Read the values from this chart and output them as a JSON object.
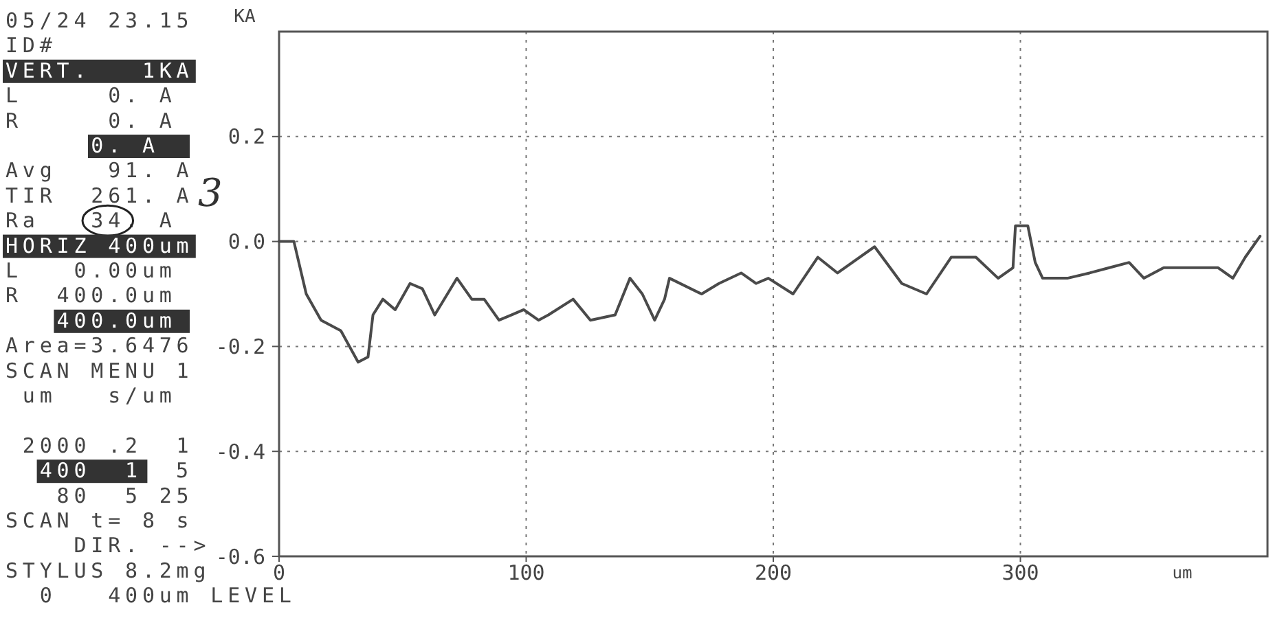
{
  "chart_data": {
    "type": "line",
    "xlabel": "um",
    "ylabel": "KA",
    "color": "#4a4a4a",
    "line_style": "solid",
    "grid": true,
    "x": [
      0,
      6,
      11,
      17,
      25,
      32,
      36,
      38,
      42,
      47,
      53,
      58,
      63,
      72,
      78,
      83,
      89,
      94,
      99,
      105,
      109,
      119,
      126,
      136,
      142,
      147,
      152,
      156,
      158,
      171,
      178,
      187,
      193,
      198,
      208,
      218,
      226,
      241,
      252,
      262,
      272,
      282,
      291,
      297,
      298,
      303,
      306,
      309,
      319,
      328,
      336,
      344,
      350,
      358,
      369,
      380,
      386,
      391,
      397
    ],
    "values": [
      0,
      0,
      -0.1,
      -0.15,
      -0.17,
      -0.23,
      -0.22,
      -0.14,
      -0.11,
      -0.13,
      -0.08,
      -0.09,
      -0.14,
      -0.07,
      -0.11,
      -0.11,
      -0.15,
      -0.14,
      -0.13,
      -0.15,
      -0.14,
      -0.11,
      -0.15,
      -0.14,
      -0.07,
      -0.1,
      -0.15,
      -0.11,
      -0.07,
      -0.1,
      -0.08,
      -0.06,
      -0.08,
      -0.07,
      -0.1,
      -0.03,
      -0.06,
      -0.01,
      -0.08,
      -0.1,
      -0.03,
      -0.03,
      -0.07,
      -0.05,
      0.03,
      0.03,
      -0.04,
      -0.07,
      -0.07,
      -0.06,
      -0.05,
      -0.04,
      -0.07,
      -0.05,
      -0.05,
      -0.05,
      -0.07,
      -0.03,
      0.01
    ],
    "xlim": [
      0,
      400
    ],
    "ylim": [
      -0.6,
      0.4
    ],
    "xticks": [
      0,
      100,
      200,
      300
    ],
    "yticks": [
      -0.6,
      -0.4,
      -0.2,
      {
        "value": 0,
        "label": "0.0"
      },
      0.2
    ],
    "annotations": [
      "05/24 23.15",
      "ID#",
      "VERT.   1KA",
      "L     0. A",
      "R     0. A",
      "     0. A",
      "Avg   91. A",
      "TIR  261. A",
      "Ra   34. A",
      "HORIZ 400um",
      "L   0.00um",
      "R  400.0um",
      "   400.0um",
      "Area=3.6476",
      "SCAN MENU 1",
      " um   s/um",
      " 2000 .2  1",
      "  400  1",
      "5",
      "   80  5 25",
      "SCAN t= 8 s",
      "    DIR. -->",
      "STYLUS 8.2mg",
      "  0   400um LEVEL",
      "3"
    ]
  }
}
